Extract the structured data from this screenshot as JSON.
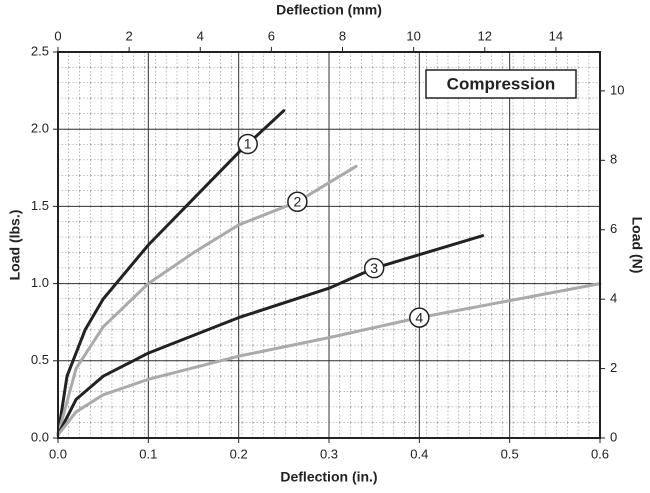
{
  "chart_data": {
    "type": "line",
    "xlabel": "Deflection (in.)",
    "x2label": "Deflection (mm)",
    "ylabel": "Load (lbs.)",
    "y2label": "Load (N)",
    "annotation": "Compression",
    "xlim": [
      0,
      0.6
    ],
    "xticks": [
      {
        "value": 0,
        "label": "0.0"
      },
      0.1,
      0.2,
      0.3,
      0.4,
      0.5,
      0.6
    ],
    "x2lim": [
      0,
      15.24
    ],
    "x2ticks": [
      0,
      2,
      4,
      6,
      8,
      10,
      12,
      14
    ],
    "ylim": [
      0,
      2.5
    ],
    "yticks": [
      {
        "value": 0,
        "label": "0.0"
      },
      0.5,
      {
        "value": 1,
        "label": "1.0"
      },
      1.5,
      {
        "value": 2,
        "label": "2.0"
      },
      2.5
    ],
    "y2lim": [
      0,
      11.12
    ],
    "y2ticks": [
      0,
      2,
      4,
      6,
      8,
      10
    ],
    "grid": true,
    "series": [
      {
        "name": "1",
        "color": "#222222",
        "x": [
          0,
          0.01,
          0.03,
          0.05,
          0.1,
          0.15,
          0.2,
          0.25
        ],
        "values": [
          0.02,
          0.4,
          0.7,
          0.9,
          1.25,
          1.55,
          1.85,
          2.12
        ]
      },
      {
        "name": "2",
        "color": "#aaaaaa",
        "x": [
          0,
          0.02,
          0.05,
          0.1,
          0.15,
          0.2,
          0.265,
          0.33
        ],
        "values": [
          0.02,
          0.45,
          0.72,
          1.0,
          1.2,
          1.38,
          1.53,
          1.76
        ]
      },
      {
        "name": "3",
        "color": "#222222",
        "x": [
          0,
          0.02,
          0.05,
          0.1,
          0.2,
          0.3,
          0.35,
          0.47
        ],
        "values": [
          0.02,
          0.25,
          0.4,
          0.55,
          0.78,
          0.97,
          1.1,
          1.31
        ]
      },
      {
        "name": "4",
        "color": "#aaaaaa",
        "x": [
          0,
          0.02,
          0.05,
          0.1,
          0.2,
          0.3,
          0.4,
          0.5,
          0.6
        ],
        "values": [
          0.02,
          0.17,
          0.28,
          0.38,
          0.53,
          0.65,
          0.78,
          0.89,
          1.0
        ]
      }
    ]
  }
}
